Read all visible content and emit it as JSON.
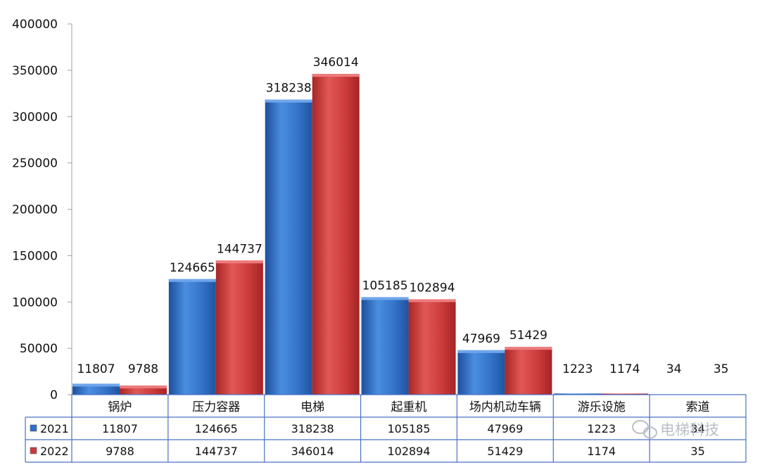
{
  "chart_data": {
    "type": "bar",
    "categories": [
      "锅炉",
      "压力容器",
      "电梯",
      "起重机",
      "场内机动车辆",
      "游乐设施",
      "索道"
    ],
    "series": [
      {
        "name": "2021",
        "values": [
          11807,
          124665,
          318238,
          105185,
          47969,
          1223,
          34
        ],
        "color": "#2f6fc7"
      },
      {
        "name": "2022",
        "values": [
          9788,
          144737,
          346014,
          102894,
          51429,
          1174,
          35
        ],
        "color": "#c93a3a"
      }
    ],
    "ylim": [
      0,
      400000
    ],
    "yticks": [
      0,
      50000,
      100000,
      150000,
      200000,
      250000,
      300000,
      350000,
      400000
    ],
    "title": "",
    "xlabel": "",
    "ylabel": "",
    "grid": false,
    "legend": "data-table",
    "data_table": true,
    "watermark": "电梯科技"
  }
}
